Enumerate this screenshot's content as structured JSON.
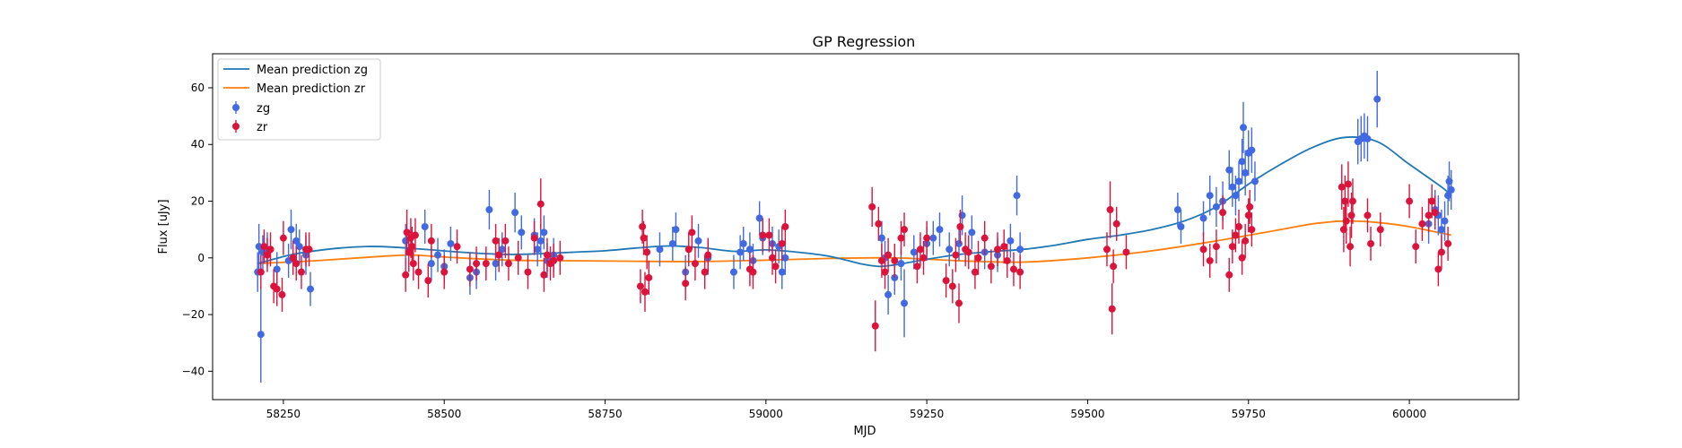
{
  "chart_data": {
    "type": "scatter",
    "title": "GP Regression",
    "xlabel": "MJD",
    "ylabel": "Flux [uJy]",
    "xlim": [
      58140,
      60170
    ],
    "ylim": [
      -50,
      72
    ],
    "xticks": [
      58250,
      58500,
      58750,
      59000,
      59250,
      59500,
      59750,
      60000
    ],
    "yticks": [
      -40,
      -20,
      0,
      20,
      40,
      60
    ],
    "grid": false,
    "legend_position": "top-left",
    "colors": {
      "zg_mean": "#1f77b4",
      "zr_mean": "#ff7f0e",
      "zg_points": "#4169e1",
      "zr_points": "#dc143c"
    },
    "lines": [
      {
        "name": "Mean prediction zg",
        "x": [
          58210,
          58260,
          58300,
          58340,
          58380,
          58420,
          58480,
          58540,
          58600,
          58650,
          58700,
          58750,
          58800,
          58850,
          58900,
          58950,
          59000,
          59050,
          59100,
          59150,
          59175,
          59200,
          59250,
          59300,
          59350,
          59400,
          59450,
          59500,
          59550,
          59600,
          59650,
          59700,
          59750,
          59800,
          59850,
          59900,
          59950,
          60000,
          60050,
          60065
        ],
        "y": [
          -2,
          1,
          2.5,
          3.5,
          4,
          3.8,
          2.8,
          1.8,
          1.2,
          1.5,
          2,
          2.5,
          3.5,
          4.2,
          3.6,
          2.3,
          2.8,
          2,
          0.5,
          -2.2,
          -3,
          -2.5,
          -0.5,
          1.2,
          2.2,
          3,
          4.5,
          6.5,
          8,
          10,
          13,
          18,
          26,
          33,
          39,
          42.5,
          41,
          33,
          25,
          22
        ]
      },
      {
        "name": "Mean prediction zr",
        "x": [
          58210,
          58300,
          58400,
          58450,
          58500,
          58600,
          58700,
          58800,
          58900,
          59000,
          59100,
          59200,
          59300,
          59400,
          59500,
          59600,
          59700,
          59800,
          59850,
          59900,
          59950,
          60000,
          60065
        ],
        "y": [
          -2,
          -1,
          0.5,
          1,
          0.3,
          -0.8,
          -1,
          -1.2,
          -1.3,
          -0.8,
          -0.2,
          0,
          -1,
          -1.5,
          0,
          2.5,
          6,
          10,
          12,
          13,
          12.5,
          11,
          8
        ]
      }
    ],
    "series": [
      {
        "name": "zg",
        "marker": "o",
        "points": [
          [
            58210,
            -5,
            7
          ],
          [
            58212,
            4,
            8
          ],
          [
            58215,
            -27,
            17
          ],
          [
            58218,
            2,
            6
          ],
          [
            58225,
            3,
            6
          ],
          [
            58240,
            -4,
            6
          ],
          [
            58258,
            -1,
            6
          ],
          [
            58262,
            10,
            7
          ],
          [
            58270,
            6,
            6
          ],
          [
            58275,
            4,
            6
          ],
          [
            58285,
            1,
            7
          ],
          [
            58292,
            -11,
            6
          ],
          [
            58440,
            6,
            6
          ],
          [
            58450,
            4,
            6
          ],
          [
            58470,
            11,
            6
          ],
          [
            58480,
            -2,
            6
          ],
          [
            58490,
            1,
            6
          ],
          [
            58500,
            -3,
            6
          ],
          [
            58510,
            5,
            6
          ],
          [
            58540,
            -7,
            6
          ],
          [
            58550,
            -5,
            6
          ],
          [
            58570,
            17,
            7
          ],
          [
            58580,
            -2,
            6
          ],
          [
            58590,
            3,
            6
          ],
          [
            58610,
            16,
            7
          ],
          [
            58620,
            9,
            6
          ],
          [
            58640,
            8,
            6
          ],
          [
            58645,
            3,
            6
          ],
          [
            58650,
            6,
            6
          ],
          [
            58655,
            9,
            6
          ],
          [
            58660,
            -1,
            6
          ],
          [
            58670,
            1,
            6
          ],
          [
            58835,
            3,
            6
          ],
          [
            58860,
            10,
            6
          ],
          [
            58855,
            5,
            6
          ],
          [
            58875,
            -5,
            6
          ],
          [
            58895,
            6,
            6
          ],
          [
            58910,
            0,
            6
          ],
          [
            58950,
            -5,
            6
          ],
          [
            58960,
            2,
            6
          ],
          [
            58965,
            5,
            6
          ],
          [
            58975,
            3,
            6
          ],
          [
            58980,
            -1,
            6
          ],
          [
            58990,
            14,
            6
          ],
          [
            58995,
            7,
            6
          ],
          [
            59010,
            5,
            6
          ],
          [
            59020,
            4,
            6
          ],
          [
            59025,
            -5,
            6
          ],
          [
            59030,
            0,
            6
          ],
          [
            59180,
            7,
            6
          ],
          [
            59185,
            0,
            6
          ],
          [
            59190,
            -13,
            7
          ],
          [
            59200,
            -7,
            6
          ],
          [
            59210,
            -2,
            6
          ],
          [
            59215,
            -16,
            12
          ],
          [
            59230,
            2,
            6
          ],
          [
            59250,
            5,
            6
          ],
          [
            59260,
            7,
            6
          ],
          [
            59270,
            10,
            6
          ],
          [
            59285,
            3,
            6
          ],
          [
            59300,
            5,
            6
          ],
          [
            59305,
            15,
            7
          ],
          [
            59320,
            9,
            6
          ],
          [
            59340,
            2,
            6
          ],
          [
            59360,
            1,
            6
          ],
          [
            59380,
            6,
            6
          ],
          [
            59390,
            22,
            7
          ],
          [
            59395,
            3,
            6
          ],
          [
            59640,
            17,
            6
          ],
          [
            59645,
            11,
            6
          ],
          [
            59680,
            14,
            6
          ],
          [
            59690,
            22,
            7
          ],
          [
            59700,
            18,
            7
          ],
          [
            59710,
            20,
            7
          ],
          [
            59720,
            31,
            7
          ],
          [
            59725,
            25,
            7
          ],
          [
            59730,
            22,
            7
          ],
          [
            59735,
            27,
            7
          ],
          [
            59740,
            34,
            8
          ],
          [
            59742,
            46,
            9
          ],
          [
            59745,
            30,
            8
          ],
          [
            59750,
            37,
            8
          ],
          [
            59755,
            38,
            8
          ],
          [
            59760,
            27,
            7
          ],
          [
            59920,
            41,
            8
          ],
          [
            59925,
            42,
            8
          ],
          [
            59930,
            43,
            8
          ],
          [
            59935,
            42,
            8
          ],
          [
            59950,
            56,
            10
          ],
          [
            60030,
            12,
            7
          ],
          [
            60040,
            17,
            7
          ],
          [
            60045,
            15,
            7
          ],
          [
            60050,
            10,
            7
          ],
          [
            60055,
            13,
            7
          ],
          [
            60060,
            22,
            7
          ],
          [
            60062,
            27,
            7
          ],
          [
            60065,
            24,
            7
          ]
        ]
      },
      {
        "name": "zr",
        "marker": "o",
        "points": [
          [
            58215,
            -5,
            6
          ],
          [
            58220,
            4,
            6
          ],
          [
            58225,
            1,
            6
          ],
          [
            58230,
            3,
            6
          ],
          [
            58235,
            -10,
            6
          ],
          [
            58240,
            -11,
            6
          ],
          [
            58248,
            -13,
            6
          ],
          [
            58250,
            7,
            6
          ],
          [
            58265,
            0,
            6
          ],
          [
            58270,
            -2,
            6
          ],
          [
            58278,
            -5,
            6
          ],
          [
            58285,
            3,
            6
          ],
          [
            58290,
            3,
            6
          ],
          [
            58440,
            -6,
            6
          ],
          [
            58442,
            9,
            8
          ],
          [
            58445,
            2,
            7
          ],
          [
            58448,
            7,
            7
          ],
          [
            58450,
            4,
            7
          ],
          [
            58452,
            -2,
            6
          ],
          [
            58455,
            8,
            6
          ],
          [
            58460,
            -5,
            6
          ],
          [
            58475,
            -8,
            6
          ],
          [
            58480,
            6,
            6
          ],
          [
            58500,
            -5,
            6
          ],
          [
            58520,
            4,
            6
          ],
          [
            58540,
            -4,
            6
          ],
          [
            58550,
            -2,
            6
          ],
          [
            58565,
            -2,
            6
          ],
          [
            58580,
            6,
            6
          ],
          [
            58585,
            1,
            6
          ],
          [
            58595,
            6,
            6
          ],
          [
            58600,
            -2,
            6
          ],
          [
            58615,
            0,
            6
          ],
          [
            58630,
            -5,
            6
          ],
          [
            58640,
            7,
            6
          ],
          [
            58650,
            19,
            9
          ],
          [
            58655,
            -6,
            6
          ],
          [
            58660,
            1,
            6
          ],
          [
            58665,
            -2,
            6
          ],
          [
            58670,
            -1,
            6
          ],
          [
            58680,
            0,
            6
          ],
          [
            58805,
            -10,
            6
          ],
          [
            58808,
            11,
            6
          ],
          [
            58810,
            7,
            6
          ],
          [
            58812,
            -12,
            7
          ],
          [
            58815,
            2,
            6
          ],
          [
            58818,
            -7,
            6
          ],
          [
            58875,
            -9,
            6
          ],
          [
            58880,
            3,
            6
          ],
          [
            58885,
            9,
            6
          ],
          [
            58890,
            -2,
            6
          ],
          [
            58905,
            -5,
            6
          ],
          [
            58910,
            1,
            6
          ],
          [
            58975,
            -4,
            6
          ],
          [
            58980,
            -5,
            6
          ],
          [
            58995,
            8,
            6
          ],
          [
            59005,
            8,
            6
          ],
          [
            59010,
            0,
            6
          ],
          [
            59015,
            -3,
            6
          ],
          [
            59025,
            5,
            6
          ],
          [
            59030,
            11,
            6
          ],
          [
            59165,
            18,
            7
          ],
          [
            59170,
            -24,
            9
          ],
          [
            59175,
            12,
            6
          ],
          [
            59180,
            -1,
            6
          ],
          [
            59185,
            -5,
            6
          ],
          [
            59190,
            1,
            6
          ],
          [
            59200,
            -1,
            6
          ],
          [
            59210,
            7,
            6
          ],
          [
            59215,
            10,
            6
          ],
          [
            59235,
            -3,
            6
          ],
          [
            59240,
            3,
            6
          ],
          [
            59245,
            0,
            6
          ],
          [
            59250,
            7,
            6
          ],
          [
            59280,
            -8,
            6
          ],
          [
            59290,
            -10,
            6
          ],
          [
            59295,
            1,
            6
          ],
          [
            59300,
            -16,
            7
          ],
          [
            59302,
            11,
            6
          ],
          [
            59310,
            3,
            6
          ],
          [
            59315,
            2,
            6
          ],
          [
            59325,
            -5,
            6
          ],
          [
            59330,
            0,
            6
          ],
          [
            59340,
            7,
            6
          ],
          [
            59350,
            -3,
            6
          ],
          [
            59360,
            3,
            6
          ],
          [
            59370,
            4,
            6
          ],
          [
            59375,
            -1,
            6
          ],
          [
            59385,
            -4,
            6
          ],
          [
            59395,
            -5,
            6
          ],
          [
            59530,
            3,
            6
          ],
          [
            59535,
            17,
            10
          ],
          [
            59538,
            -18,
            9
          ],
          [
            59540,
            -3,
            6
          ],
          [
            59545,
            12,
            6
          ],
          [
            59560,
            2,
            6
          ],
          [
            59680,
            3,
            6
          ],
          [
            59690,
            -1,
            6
          ],
          [
            59700,
            4,
            6
          ],
          [
            59710,
            16,
            6
          ],
          [
            59720,
            -6,
            6
          ],
          [
            59725,
            4,
            6
          ],
          [
            59730,
            8,
            6
          ],
          [
            59735,
            11,
            6
          ],
          [
            59740,
            0,
            6
          ],
          [
            59745,
            6,
            6
          ],
          [
            59750,
            15,
            6
          ],
          [
            59752,
            18,
            6
          ],
          [
            59755,
            10,
            6
          ],
          [
            59895,
            25,
            8
          ],
          [
            59898,
            10,
            8
          ],
          [
            59900,
            20,
            9
          ],
          [
            59902,
            13,
            8
          ],
          [
            59905,
            26,
            8
          ],
          [
            59908,
            4,
            7
          ],
          [
            59910,
            15,
            8
          ],
          [
            59912,
            20,
            8
          ],
          [
            59935,
            15,
            6
          ],
          [
            59940,
            5,
            6
          ],
          [
            59955,
            10,
            6
          ],
          [
            60000,
            20,
            6
          ],
          [
            60010,
            4,
            6
          ],
          [
            60020,
            12,
            6
          ],
          [
            60030,
            15,
            6
          ],
          [
            60035,
            20,
            6
          ],
          [
            60040,
            16,
            6
          ],
          [
            60045,
            -4,
            6
          ],
          [
            60050,
            2,
            6
          ],
          [
            60060,
            5,
            6
          ]
        ]
      }
    ]
  }
}
